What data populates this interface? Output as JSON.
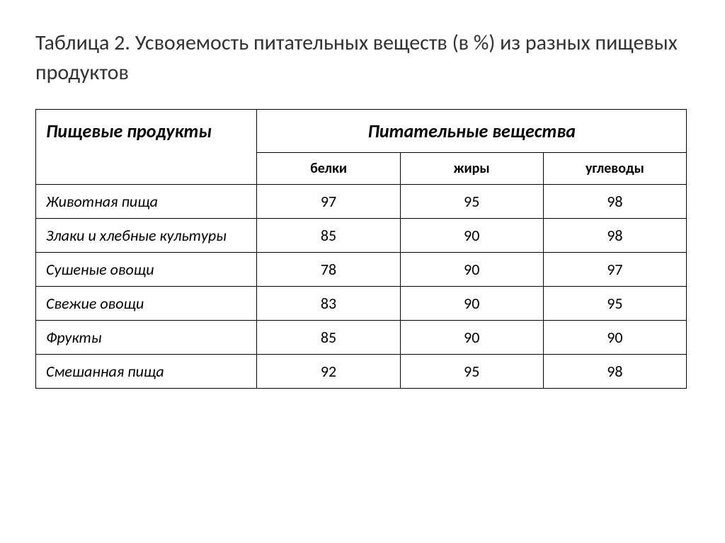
{
  "title": "Таблица 2. Усвояемость  питательных  веществ  (в %)  из  разных  пищевых продуктов",
  "table": {
    "columns": {
      "product_header": "Пищевые продукты",
      "nutrients_header": "Питательные вещества",
      "sub1": "белки",
      "sub2": "жиры",
      "sub3": "углеводы"
    },
    "rows": [
      {
        "label": "Животная пища",
        "v1": "97",
        "v2": "95",
        "v3": "98"
      },
      {
        "label": "Злаки и хлебные культуры",
        "v1": "85",
        "v2": "90",
        "v3": "98"
      },
      {
        "label": "Сушеные овощи",
        "v1": "78",
        "v2": "90",
        "v3": "97"
      },
      {
        "label": "Свежие овощи",
        "v1": "83",
        "v2": "90",
        "v3": "95"
      },
      {
        "label": "Фрукты",
        "v1": "85",
        "v2": "90",
        "v3": "90"
      },
      {
        "label": "Смешанная пища",
        "v1": "92",
        "v2": "95",
        "v3": "98"
      }
    ],
    "border_color": "#000000",
    "background_color": "#ffffff",
    "title_fontsize": 30,
    "header_fontsize": 26,
    "subheader_fontsize": 20,
    "cell_fontsize": 22,
    "column_widths_pct": [
      34,
      22,
      22,
      22
    ]
  }
}
